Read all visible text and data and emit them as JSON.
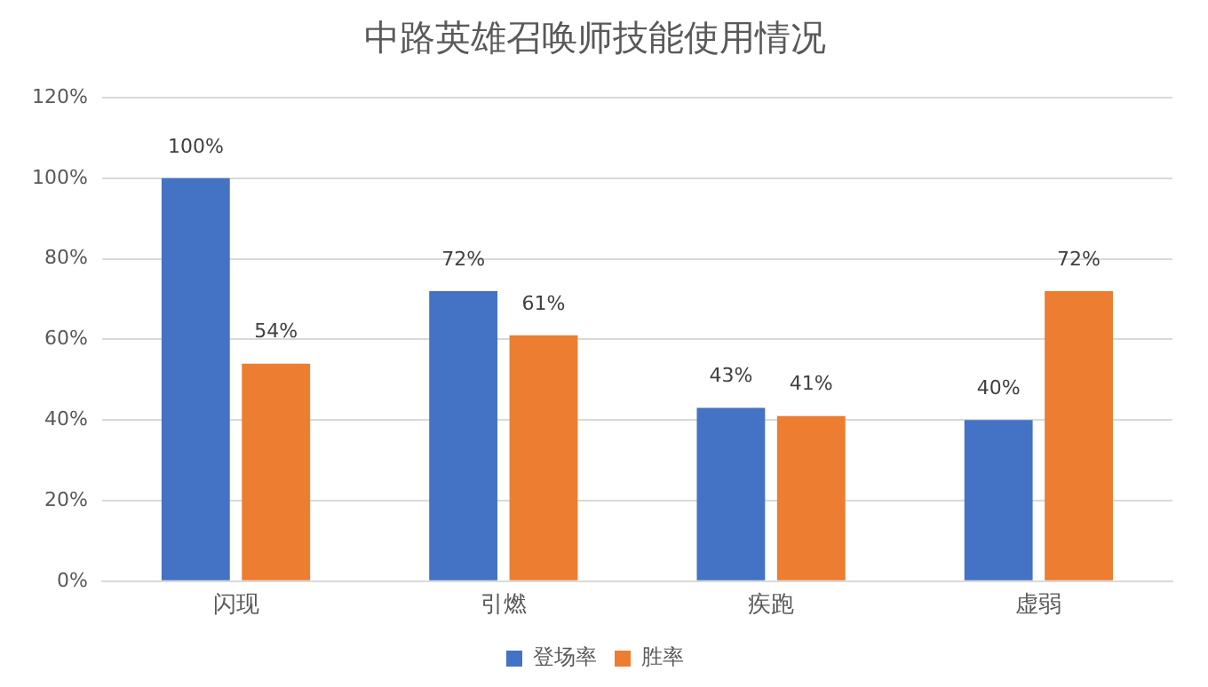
{
  "chart_data": {
    "type": "bar",
    "title": "中路英雄召唤师技能使用情况",
    "categories": [
      "闪现",
      "引燃",
      "疾跑",
      "虚弱"
    ],
    "series": [
      {
        "name": "登场率",
        "color": "#4472c4",
        "values": [
          100,
          72,
          43,
          40
        ],
        "value_labels": [
          "100%",
          "72%",
          "43%",
          "40%"
        ]
      },
      {
        "name": "胜率",
        "color": "#ed7d31",
        "values": [
          54,
          61,
          41,
          72
        ],
        "value_labels": [
          "54%",
          "61%",
          "41%",
          "72%"
        ]
      }
    ],
    "ylim": [
      0,
      120
    ],
    "yticks": [
      {
        "value": 0,
        "label": "0%"
      },
      {
        "value": 20,
        "label": "20%"
      },
      {
        "value": 40,
        "label": "40%"
      },
      {
        "value": 60,
        "label": "60%"
      },
      {
        "value": 80,
        "label": "80%"
      },
      {
        "value": 100,
        "label": "100%"
      },
      {
        "value": 120,
        "label": "120%"
      }
    ],
    "grid": "y",
    "legend": "bottom"
  }
}
